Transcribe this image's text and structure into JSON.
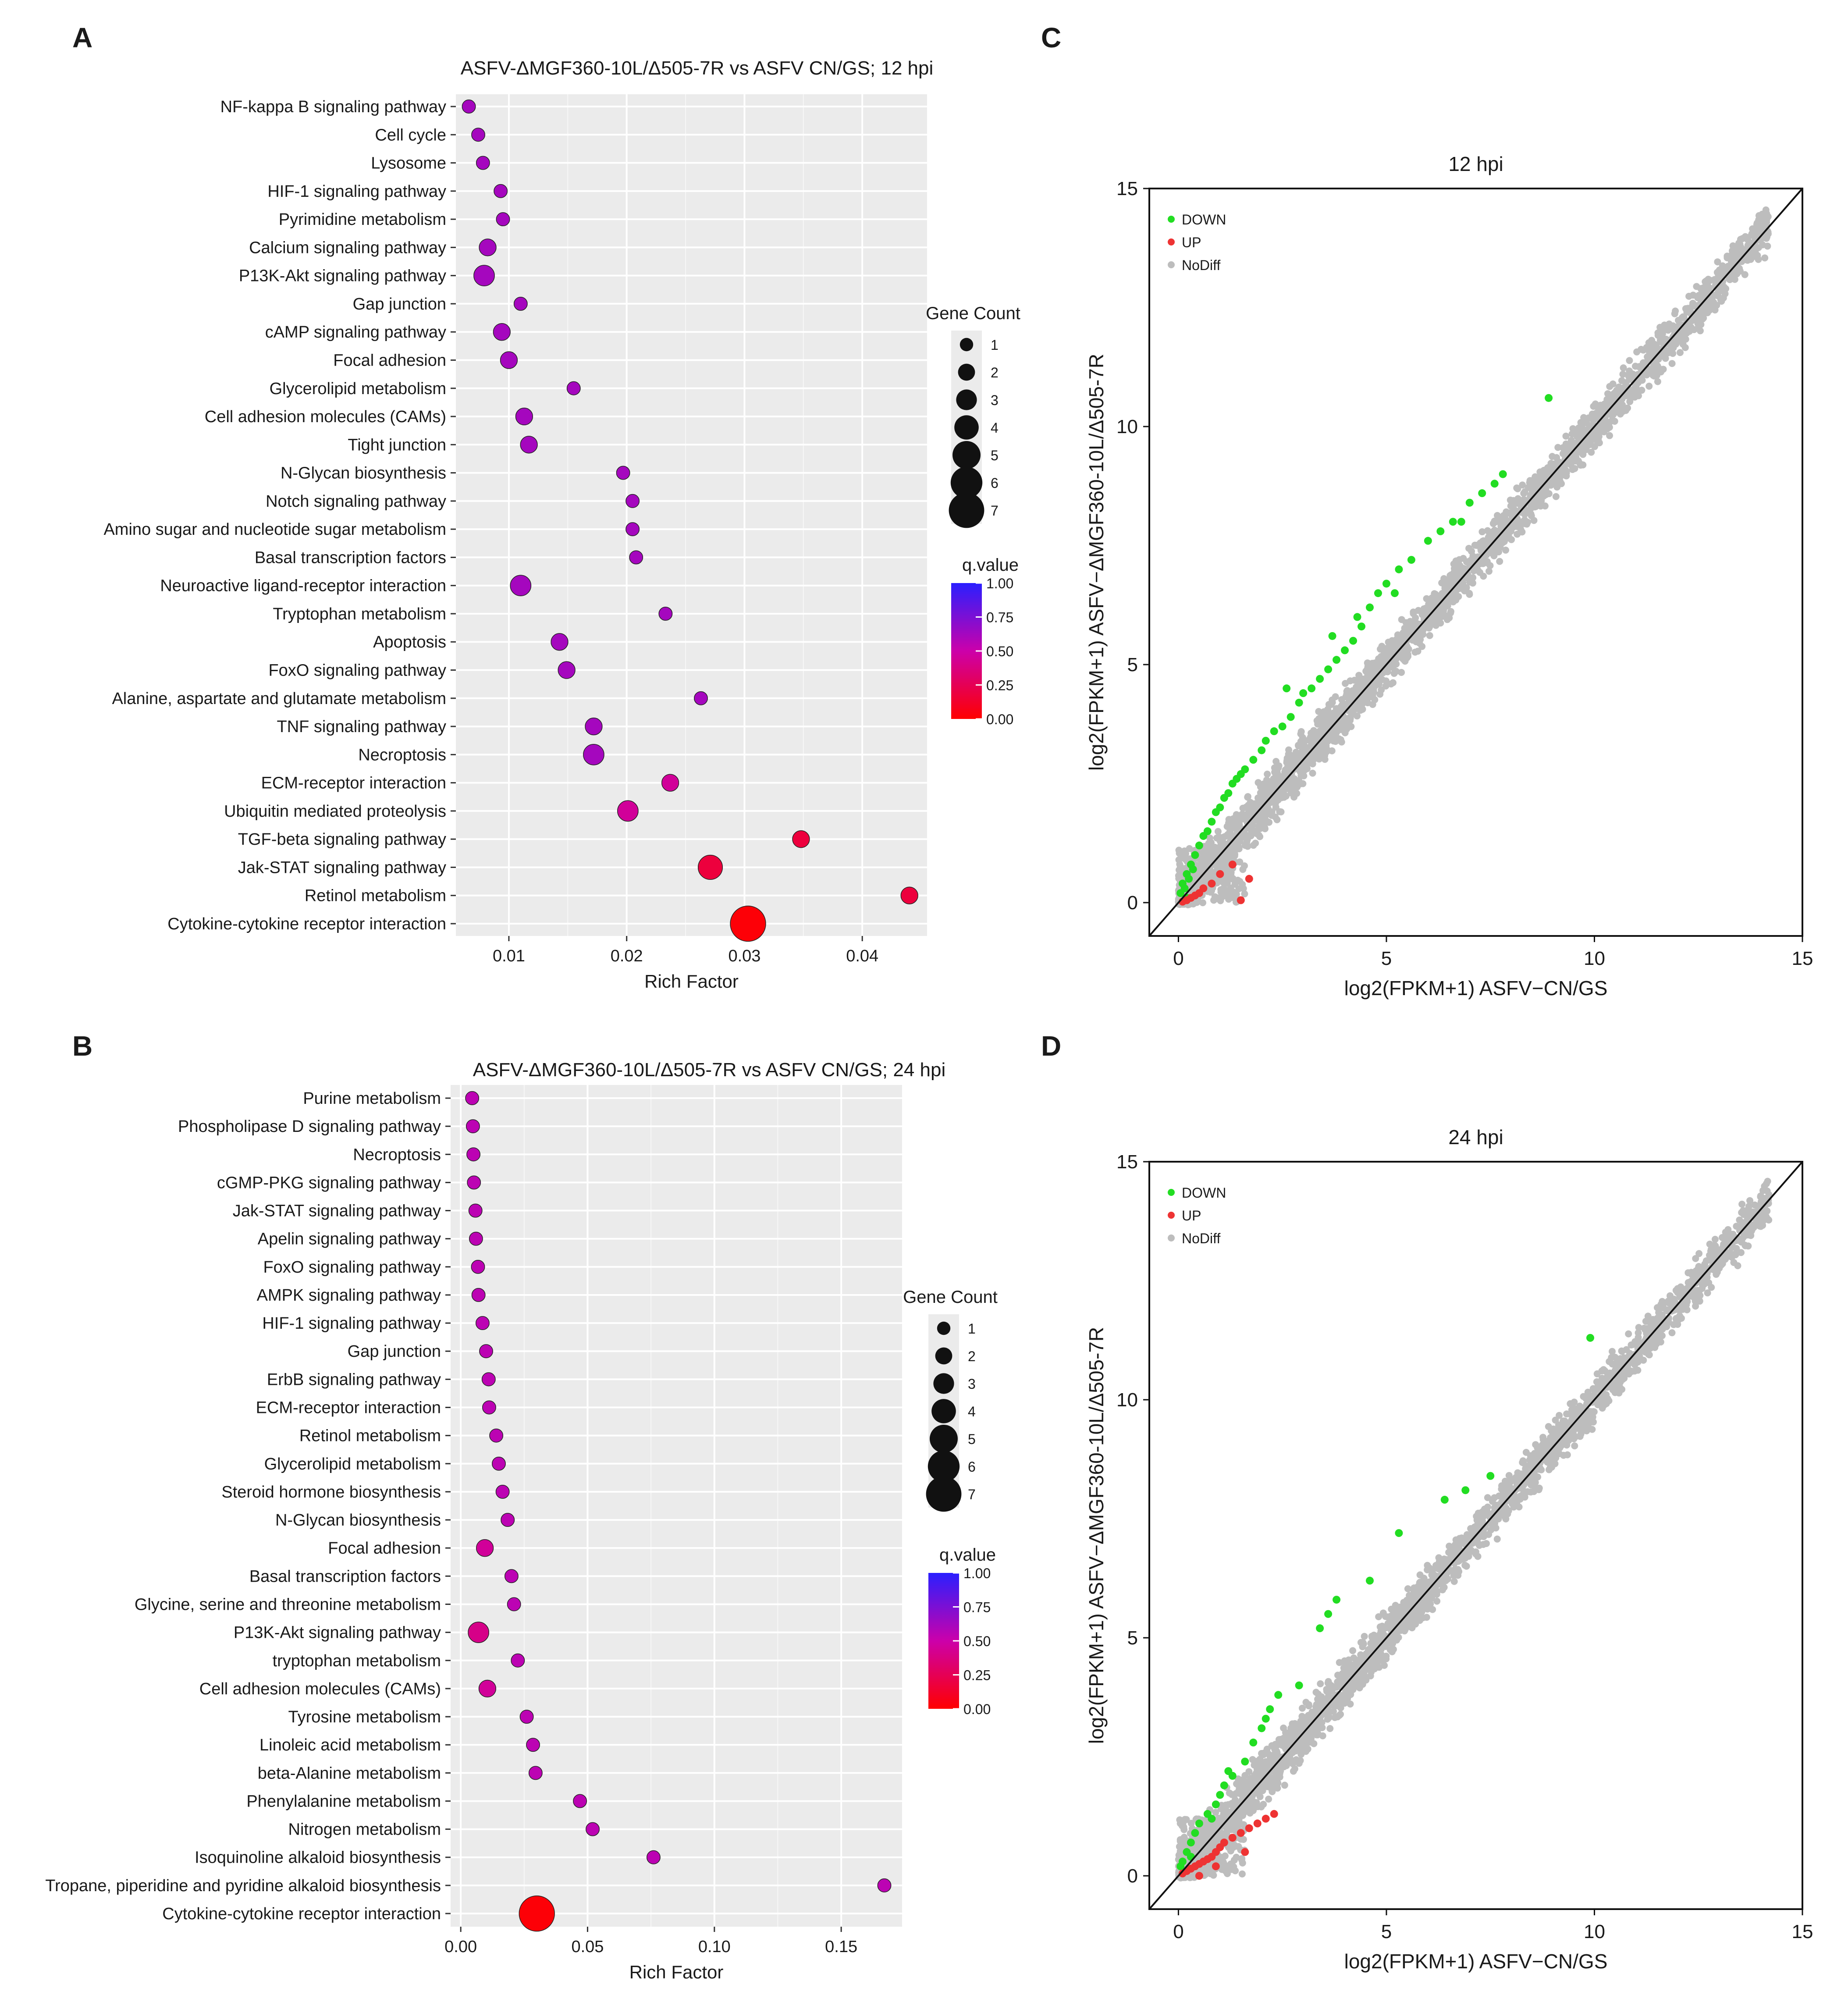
{
  "colors": {
    "panel_bg": "#ebebeb",
    "grid": "#ffffff",
    "q_low": "#ff0000",
    "q_high": "#2a1fff",
    "down": "#22dd22",
    "up": "#ee3333",
    "nodiff": "#bdbdbd"
  },
  "chart_data": [
    {
      "id": "A",
      "type": "scatter",
      "panel_label": "A",
      "title": "ASFV-ΔMGF360-10L/Δ505-7R vs ASFV CN/GS; 12 hpi",
      "xlabel": "Rich Factor",
      "ylabel": "",
      "xlim": [
        0.0055,
        0.0455
      ],
      "xticks": [
        0.01,
        0.02,
        0.03,
        0.04
      ],
      "xtick_labels": [
        "0.01",
        "0.02",
        "0.03",
        "0.04"
      ],
      "grid": true,
      "legend_position": "right",
      "size_legend": {
        "title": "Gene Count",
        "values": [
          1,
          2,
          3,
          4,
          5,
          6,
          7
        ]
      },
      "color_legend": {
        "title": "q.value",
        "ticks": [
          "1.00",
          "0.75",
          "0.50",
          "0.25",
          "0.00"
        ]
      },
      "categories": [
        "NF-kappa B signaling pathway",
        "Cell cycle",
        "Lysosome",
        "HIF-1 signaling pathway",
        "Pyrimidine metabolism",
        "Calcium signaling pathway",
        "P13K-Akt signaling pathway",
        "Gap junction",
        "cAMP signaling pathway",
        "Focal adhesion",
        "Glycerolipid metabolism",
        "Cell adhesion molecules (CAMs)",
        "Tight junction",
        "N-Glycan biosynthesis",
        "Notch signaling pathway",
        "Amino sugar and nucleotide sugar metabolism",
        "Basal transcription factors",
        "Neuroactive ligand-receptor interaction",
        "Tryptophan metabolism",
        "Apoptosis",
        "FoxO signaling pathway",
        "Alanine, aspartate and glutamate metabolism",
        "TNF signaling pathway",
        "Necroptosis",
        "ECM-receptor interaction",
        "Ubiquitin mediated proteolysis",
        "TGF-beta signaling pathway",
        "Jak-STAT signaling pathway",
        "Retinol metabolism",
        "Cytokine-cytokine receptor interaction"
      ],
      "rich_factor": [
        0.0066,
        0.0074,
        0.0078,
        0.0093,
        0.0095,
        0.0082,
        0.0079,
        0.011,
        0.0094,
        0.01,
        0.0155,
        0.0113,
        0.0117,
        0.0197,
        0.0205,
        0.0205,
        0.0208,
        0.011,
        0.0233,
        0.0143,
        0.0149,
        0.0263,
        0.0172,
        0.0172,
        0.0237,
        0.0201,
        0.0348,
        0.0271,
        0.044,
        0.0303
      ],
      "gene_count": [
        1,
        1,
        1,
        1,
        1,
        2,
        3,
        1,
        2,
        2,
        1,
        2,
        2,
        1,
        1,
        1,
        1,
        3,
        1,
        2,
        2,
        1,
        2,
        3,
        2,
        3,
        2,
        4,
        2,
        7
      ],
      "q_value": [
        0.62,
        0.62,
        0.62,
        0.62,
        0.62,
        0.62,
        0.62,
        0.62,
        0.62,
        0.62,
        0.62,
        0.62,
        0.62,
        0.62,
        0.62,
        0.62,
        0.62,
        0.62,
        0.62,
        0.62,
        0.62,
        0.62,
        0.62,
        0.62,
        0.45,
        0.45,
        0.18,
        0.18,
        0.18,
        0.02
      ]
    },
    {
      "id": "B",
      "type": "scatter",
      "panel_label": "B",
      "title": "ASFV-ΔMGF360-10L/Δ505-7R vs ASFV CN/GS; 24 hpi",
      "xlabel": "Rich Factor",
      "ylabel": "",
      "xlim": [
        -0.004,
        0.174
      ],
      "xticks": [
        0.0,
        0.05,
        0.1,
        0.15
      ],
      "xtick_labels": [
        "0.00",
        "0.05",
        "0.10",
        "0.15"
      ],
      "grid": true,
      "legend_position": "right",
      "size_legend": {
        "title": "Gene Count",
        "values": [
          1,
          2,
          3,
          4,
          5,
          6,
          7
        ]
      },
      "color_legend": {
        "title": "q.value",
        "ticks": [
          "1.00",
          "0.75",
          "0.50",
          "0.25",
          "0.00"
        ]
      },
      "categories": [
        "Purine metabolism",
        "Phospholipase D signaling pathway",
        "Necroptosis",
        "cGMP-PKG signaling pathway",
        "Jak-STAT signaling pathway",
        "Apelin signaling pathway",
        "FoxO signaling pathway",
        "AMPK signaling pathway",
        "HIF-1 signaling pathway",
        "Gap junction",
        "ErbB signaling pathway",
        "ECM-receptor interaction",
        "Retinol metabolism",
        "Glycerolipid metabolism",
        "Steroid hormone biosynthesis",
        "N-Glycan biosynthesis",
        "Focal adhesion",
        "Basal transcription factors",
        "Glycine, serine and threonine metabolism",
        "P13K-Akt signaling pathway",
        "tryptophan metabolism",
        "Cell adhesion molecules (CAMs)",
        "Tyrosine metabolism",
        "Linoleic acid metabolism",
        "beta-Alanine metabolism",
        "Phenylalanine metabolism",
        "Nitrogen metabolism",
        "Isoquinoline alkaloid biosynthesis",
        "Tropane, piperidine and pyridine alkaloid biosynthesis",
        "Cytokine-cytokine receptor interaction"
      ],
      "rich_factor": [
        0.0045,
        0.0048,
        0.005,
        0.0052,
        0.0058,
        0.006,
        0.0068,
        0.007,
        0.0086,
        0.01,
        0.011,
        0.0112,
        0.014,
        0.015,
        0.0165,
        0.0185,
        0.0095,
        0.02,
        0.021,
        0.007,
        0.0225,
        0.0105,
        0.026,
        0.0285,
        0.0295,
        0.047,
        0.052,
        0.076,
        0.167,
        0.03
      ],
      "gene_count": [
        1,
        1,
        1,
        1,
        1,
        1,
        1,
        1,
        1,
        1,
        1,
        1,
        1,
        1,
        1,
        1,
        2,
        1,
        1,
        3,
        1,
        2,
        1,
        1,
        1,
        1,
        1,
        1,
        1,
        7
      ],
      "q_value": [
        0.55,
        0.55,
        0.55,
        0.55,
        0.55,
        0.55,
        0.55,
        0.55,
        0.55,
        0.55,
        0.55,
        0.55,
        0.55,
        0.55,
        0.55,
        0.55,
        0.45,
        0.55,
        0.55,
        0.4,
        0.55,
        0.45,
        0.55,
        0.55,
        0.55,
        0.55,
        0.55,
        0.55,
        0.55,
        0.02
      ]
    },
    {
      "id": "C",
      "type": "scatter",
      "panel_label": "C",
      "title": "12 hpi",
      "xlabel": "log2(FPKM+1) ASFV−CN/GS",
      "ylabel": "log2(FPKM+1) ASFV−ΔMGF360-10L/Δ505-7R",
      "xlim": [
        -0.7,
        15
      ],
      "ylim": [
        -0.7,
        15
      ],
      "xticks": [
        0,
        5,
        10,
        15
      ],
      "yticks": [
        0,
        5,
        10,
        15
      ],
      "grid": false,
      "diagonal": [
        0,
        15
      ],
      "legend": [
        "DOWN",
        "UP",
        "NoDiff"
      ],
      "legend_position": "top-left",
      "down_points": [
        [
          0.05,
          0.2
        ],
        [
          0.1,
          0.4
        ],
        [
          0.15,
          0.3
        ],
        [
          0.2,
          0.6
        ],
        [
          0.3,
          0.8
        ],
        [
          0.25,
          0.5
        ],
        [
          0.4,
          1.0
        ],
        [
          0.5,
          1.2
        ],
        [
          0.6,
          1.4
        ],
        [
          0.7,
          1.5
        ],
        [
          0.8,
          1.7
        ],
        [
          0.9,
          1.9
        ],
        [
          1.0,
          2.0
        ],
        [
          1.1,
          2.2
        ],
        [
          1.2,
          2.3
        ],
        [
          1.3,
          2.5
        ],
        [
          1.5,
          2.7
        ],
        [
          1.6,
          2.8
        ],
        [
          1.8,
          3.0
        ],
        [
          2.0,
          3.2
        ],
        [
          2.1,
          3.4
        ],
        [
          2.3,
          3.6
        ],
        [
          2.5,
          3.7
        ],
        [
          2.7,
          3.9
        ],
        [
          2.9,
          4.2
        ],
        [
          3.0,
          4.4
        ],
        [
          3.2,
          4.5
        ],
        [
          3.4,
          4.7
        ],
        [
          3.6,
          4.9
        ],
        [
          3.8,
          5.1
        ],
        [
          4.0,
          5.3
        ],
        [
          4.2,
          5.5
        ],
        [
          4.4,
          5.8
        ],
        [
          4.6,
          6.2
        ],
        [
          4.8,
          6.5
        ],
        [
          5.0,
          6.7
        ],
        [
          5.3,
          7.0
        ],
        [
          5.6,
          7.2
        ],
        [
          6.0,
          7.6
        ],
        [
          6.3,
          7.8
        ],
        [
          6.6,
          8.0
        ],
        [
          7.0,
          8.4
        ],
        [
          7.3,
          8.6
        ],
        [
          7.6,
          8.8
        ],
        [
          7.8,
          9.0
        ],
        [
          8.9,
          10.6
        ],
        [
          0.2,
          0.1
        ],
        [
          0.35,
          0.7
        ],
        [
          1.4,
          2.6
        ],
        [
          2.6,
          4.5
        ],
        [
          3.7,
          5.6
        ],
        [
          4.3,
          6.0
        ],
        [
          5.2,
          6.5
        ],
        [
          6.8,
          8.0
        ]
      ],
      "up_points": [
        [
          0.2,
          0.05
        ],
        [
          0.3,
          0.1
        ],
        [
          0.4,
          0.15
        ],
        [
          0.5,
          0.2
        ],
        [
          0.6,
          0.3
        ],
        [
          1.3,
          0.8
        ],
        [
          1.7,
          0.5
        ],
        [
          1.5,
          0.05
        ],
        [
          0.8,
          0.4
        ],
        [
          0.1,
          0.02
        ],
        [
          1.0,
          0.6
        ]
      ]
    },
    {
      "id": "D",
      "type": "scatter",
      "panel_label": "D",
      "title": "24 hpi",
      "xlabel": "log2(FPKM+1) ASFV−CN/GS",
      "ylabel": "log2(FPKM+1) ASFV−ΔMGF360-10L/Δ505-7R",
      "xlim": [
        -0.7,
        15
      ],
      "ylim": [
        -0.7,
        15
      ],
      "xticks": [
        0,
        5,
        10,
        15
      ],
      "yticks": [
        0,
        5,
        10,
        15
      ],
      "grid": false,
      "diagonal": [
        0,
        15
      ],
      "legend": [
        "DOWN",
        "UP",
        "NoDiff"
      ],
      "legend_position": "top-left",
      "down_points": [
        [
          0.05,
          0.2
        ],
        [
          0.1,
          0.3
        ],
        [
          0.2,
          0.5
        ],
        [
          0.3,
          0.7
        ],
        [
          0.4,
          0.9
        ],
        [
          0.5,
          1.1
        ],
        [
          0.7,
          1.3
        ],
        [
          0.9,
          1.5
        ],
        [
          1.0,
          1.7
        ],
        [
          1.1,
          1.9
        ],
        [
          1.3,
          2.1
        ],
        [
          1.6,
          2.4
        ],
        [
          1.8,
          2.8
        ],
        [
          2.0,
          3.1
        ],
        [
          2.2,
          3.5
        ],
        [
          2.4,
          3.8
        ],
        [
          2.9,
          4.0
        ],
        [
          3.4,
          5.2
        ],
        [
          3.8,
          5.8
        ],
        [
          4.6,
          6.2
        ],
        [
          5.3,
          7.2
        ],
        [
          6.4,
          7.9
        ],
        [
          6.9,
          8.1
        ],
        [
          7.5,
          8.4
        ],
        [
          9.9,
          11.3
        ],
        [
          0.3,
          0.4
        ],
        [
          0.8,
          1.2
        ],
        [
          1.2,
          2.2
        ],
        [
          2.1,
          3.3
        ],
        [
          3.6,
          5.5
        ]
      ],
      "up_points": [
        [
          0.1,
          0.05
        ],
        [
          0.2,
          0.1
        ],
        [
          0.3,
          0.15
        ],
        [
          0.4,
          0.2
        ],
        [
          0.5,
          0.25
        ],
        [
          0.6,
          0.3
        ],
        [
          0.7,
          0.35
        ],
        [
          0.8,
          0.4
        ],
        [
          0.9,
          0.5
        ],
        [
          1.0,
          0.6
        ],
        [
          1.1,
          0.7
        ],
        [
          1.3,
          0.8
        ],
        [
          1.5,
          0.9
        ],
        [
          1.7,
          1.0
        ],
        [
          1.9,
          1.1
        ],
        [
          2.1,
          1.2
        ],
        [
          2.3,
          1.3
        ],
        [
          0.5,
          0.0
        ],
        [
          0.9,
          0.2
        ],
        [
          1.6,
          0.5
        ]
      ]
    }
  ]
}
